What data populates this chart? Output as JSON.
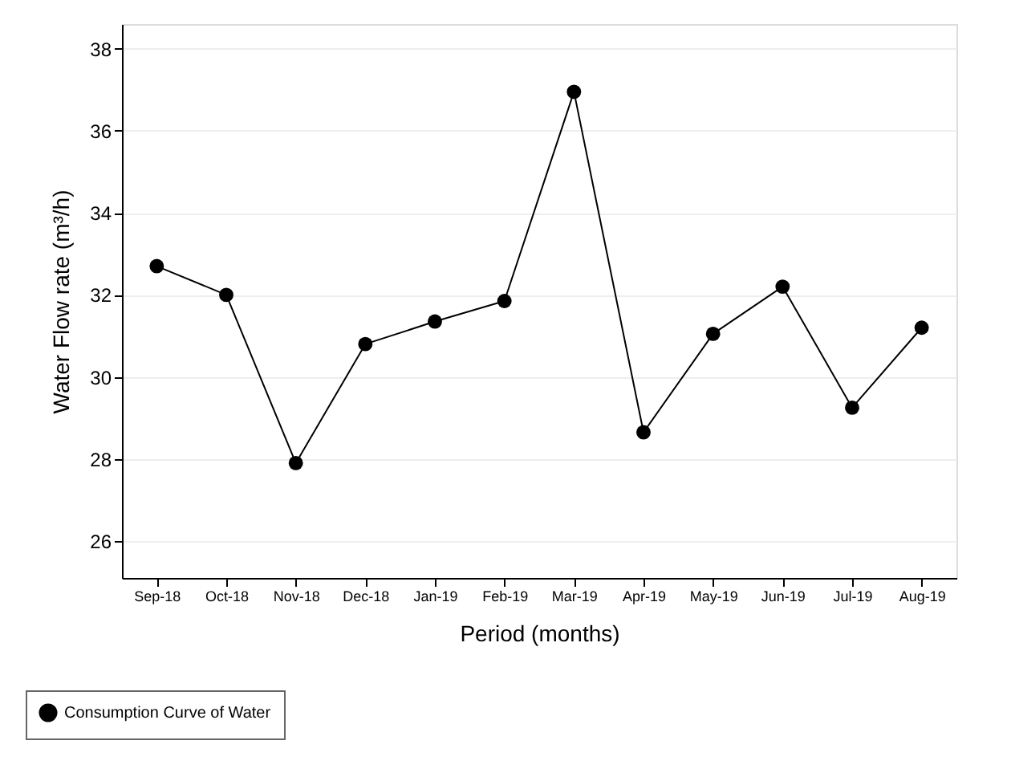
{
  "chart_data": {
    "type": "line",
    "xlabel": "Period (months)",
    "ylabel": "Water Flow rate (m³/h)",
    "categories": [
      "Sep-18",
      "Oct-18",
      "Nov-18",
      "Dec-18",
      "Jan-19",
      "Feb-19",
      "Mar-19",
      "Apr-19",
      "May-19",
      "Jun-19",
      "Jul-19",
      "Aug-19"
    ],
    "series": [
      {
        "name": "Consumption Curve of Water",
        "color": "#000000",
        "values": [
          32.7,
          32.0,
          27.9,
          30.8,
          31.35,
          31.85,
          36.95,
          28.65,
          31.05,
          32.2,
          29.25,
          31.2
        ]
      }
    ],
    "ylim": [
      25.1,
      38.6
    ],
    "yticks": [
      26,
      28,
      30,
      32,
      34,
      36,
      38
    ],
    "grid": "y",
    "legend": "bottom left",
    "marker": "circle",
    "line_style": "solid"
  }
}
